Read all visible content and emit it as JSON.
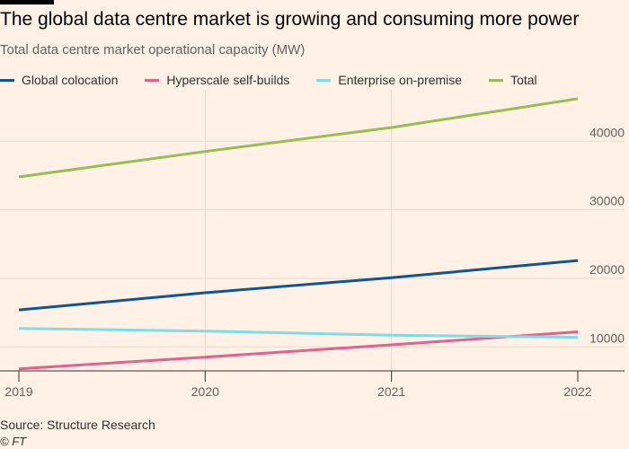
{
  "title": "The global data centre market is growing and consuming more power",
  "subtitle": "Total data centre market operational capacity (MW)",
  "source": "Source: Structure Research",
  "copyright": "© FT",
  "chart_data": {
    "type": "line",
    "x": [
      "2019",
      "2020",
      "2021",
      "2022"
    ],
    "ylabel": "",
    "ylim": [
      6500,
      47500
    ],
    "yticks": [
      10000,
      20000,
      30000,
      40000
    ],
    "grid": true,
    "legend_position": "top",
    "series": [
      {
        "name": "Global colocation",
        "color": "#0F5499",
        "values": [
          15400,
          17900,
          20100,
          22600
        ]
      },
      {
        "name": "Hyperscale self-builds",
        "color": "#E1628F",
        "values": [
          6800,
          8500,
          10300,
          12200
        ]
      },
      {
        "name": "Enterprise on-premise",
        "color": "#7CDDE6",
        "values": [
          12700,
          12300,
          11700,
          11400
        ]
      },
      {
        "name": "Total",
        "color": "#96BF50",
        "values": [
          34800,
          38500,
          42000,
          46200
        ]
      }
    ]
  }
}
